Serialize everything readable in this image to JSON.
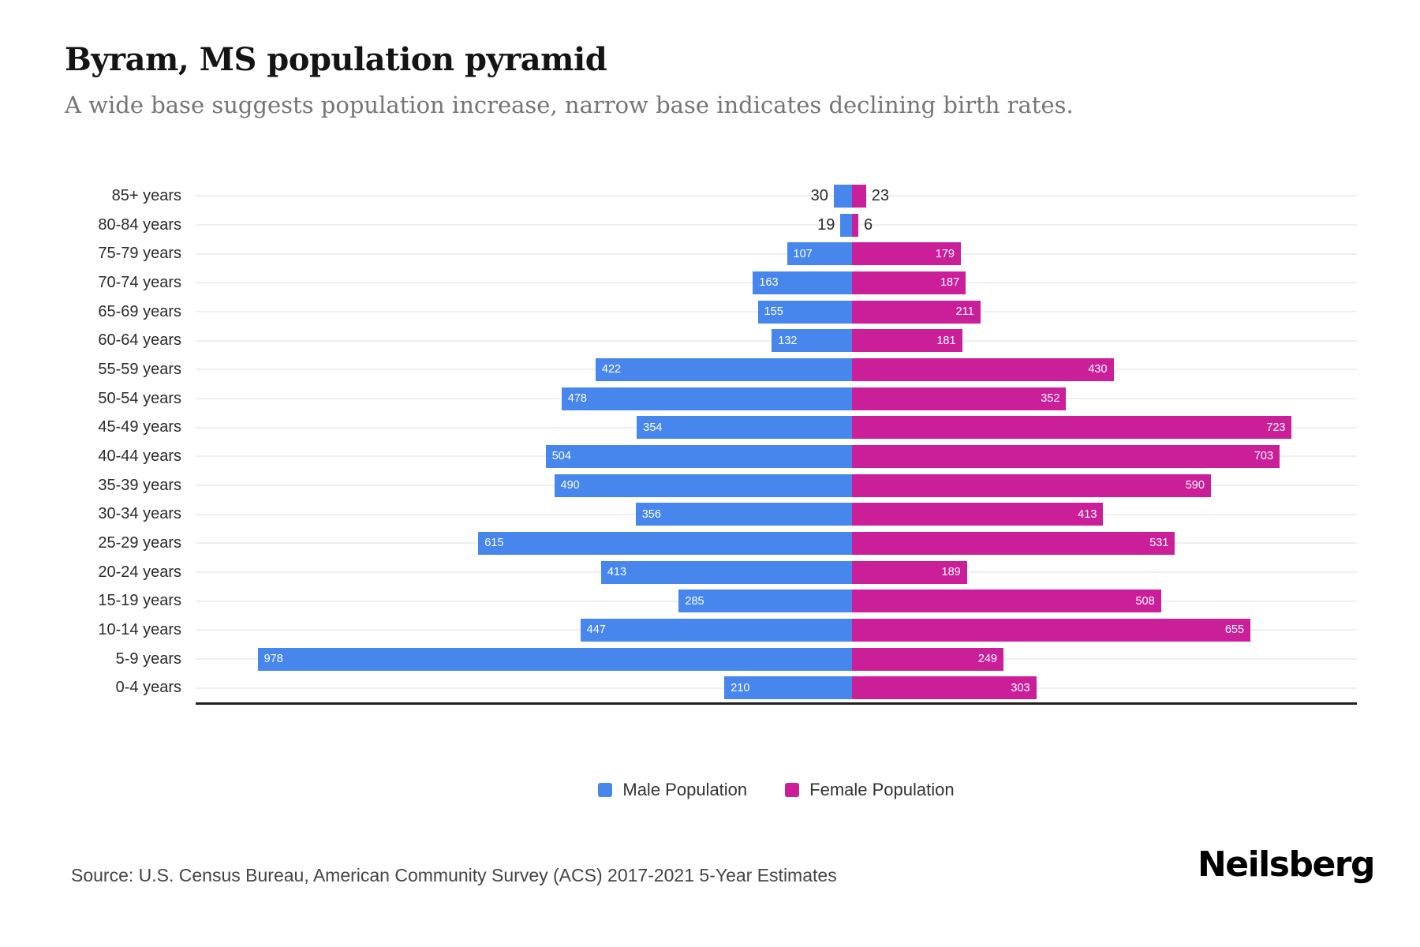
{
  "header": {
    "title": "Byram, MS population pyramid",
    "subtitle": "A wide base suggests population increase, narrow base indicates declining birth rates."
  },
  "chart_data": {
    "type": "bar",
    "variant": "population-pyramid-horizontal-diverging",
    "categories": [
      "85+ years",
      "80-84 years",
      "75-79 years",
      "70-74 years",
      "65-69 years",
      "60-64 years",
      "55-59 years",
      "50-54 years",
      "45-49 years",
      "40-44 years",
      "35-39 years",
      "30-34 years",
      "25-29 years",
      "20-24 years",
      "15-19 years",
      "10-14 years",
      "5-9 years",
      "0-4 years"
    ],
    "series": [
      {
        "name": "Male Population",
        "side": "left",
        "color": "#4786EC",
        "values": [
          30,
          19,
          107,
          163,
          155,
          132,
          422,
          478,
          354,
          504,
          490,
          356,
          615,
          413,
          285,
          447,
          978,
          210
        ]
      },
      {
        "name": "Female Population",
        "side": "right",
        "color": "#CB1F9A",
        "values": [
          23,
          6,
          179,
          187,
          211,
          181,
          430,
          352,
          723,
          703,
          590,
          413,
          531,
          189,
          508,
          655,
          249,
          303
        ]
      }
    ],
    "layout": {
      "male_axis_max": 1080,
      "female_axis_max": 830,
      "grid": true,
      "legend_position": "bottom",
      "outside_label_below": 100
    }
  },
  "legend": {
    "items": [
      {
        "label": "Male Population",
        "color": "#4786EC"
      },
      {
        "label": "Female Population",
        "color": "#CB1F9A"
      }
    ]
  },
  "footer": {
    "source": "Source: U.S. Census Bureau, American Community Survey (ACS) 2017-2021 5-Year Estimates",
    "brand": "Neilsberg"
  }
}
